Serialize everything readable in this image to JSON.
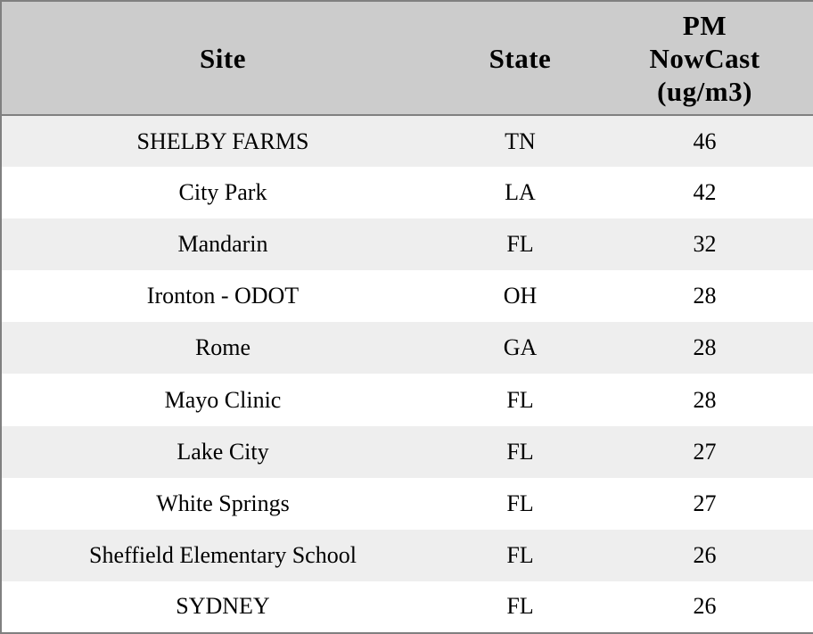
{
  "chart_data": {
    "type": "table",
    "columns": [
      "Site",
      "State",
      "PM\nNowCast\n(ug/m3)"
    ],
    "rows": [
      [
        "SHELBY FARMS",
        "TN",
        "46"
      ],
      [
        "City Park",
        "LA",
        "42"
      ],
      [
        "Mandarin",
        "FL",
        "32"
      ],
      [
        "Ironton - ODOT",
        "OH",
        "28"
      ],
      [
        "Rome",
        "GA",
        "28"
      ],
      [
        "Mayo Clinic",
        "FL",
        "28"
      ],
      [
        "Lake City",
        "FL",
        "27"
      ],
      [
        "White Springs",
        "FL",
        "27"
      ],
      [
        "Sheffield Elementary School",
        "FL",
        "26"
      ],
      [
        "SYDNEY",
        "FL",
        "26"
      ]
    ],
    "title": "",
    "layout": {
      "header_position": "top",
      "zebra_striping": true,
      "text_alignment": "center"
    }
  },
  "colors": {
    "header_bg": "#cccccc",
    "row_odd_bg": "#eeeeee",
    "row_even_bg": "#ffffff",
    "border": "#808080",
    "text": "#000000"
  }
}
